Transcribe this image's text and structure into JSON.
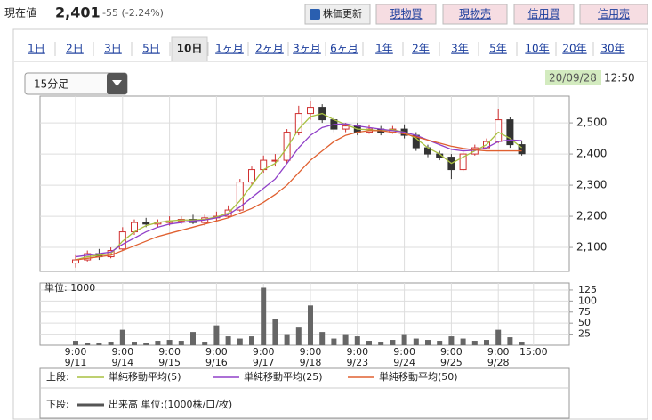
{
  "header": {
    "price_label": "現在値",
    "price": "2,401",
    "change": "-55 (-2.24%)",
    "buttons": [
      "株価更新",
      "現物買",
      "現物売",
      "信用買",
      "信用売"
    ]
  },
  "periods": [
    {
      "label": "1日",
      "selected": false
    },
    {
      "label": "2日",
      "selected": false
    },
    {
      "label": "3日",
      "selected": false
    },
    {
      "label": "5日",
      "selected": false
    },
    {
      "label": "10日",
      "selected": true
    },
    {
      "label": "1ヶ月",
      "selected": false
    },
    {
      "label": "2ヶ月",
      "selected": false
    },
    {
      "label": "3ヶ月",
      "selected": false
    },
    {
      "label": "6ヶ月",
      "selected": false
    },
    {
      "label": "1年",
      "selected": false
    },
    {
      "label": "2年",
      "selected": false
    },
    {
      "label": "3年",
      "selected": false
    },
    {
      "label": "5年",
      "selected": false
    },
    {
      "label": "10年",
      "selected": false
    },
    {
      "label": "20年",
      "selected": false
    },
    {
      "label": "30年",
      "selected": false
    }
  ],
  "interval_select": "15分足",
  "timestamp": {
    "date": "20/09/28",
    "time": "12:50"
  },
  "legend": {
    "upper_label": "上段:",
    "lower_label": "下段:",
    "volume_label": "出来高 単位:(1000株/口/枚)"
  },
  "chart_data": [
    {
      "type": "candlestick",
      "up_color": "#d03030",
      "down_color": "#333333",
      "ylim": [
        2023,
        2586
      ],
      "yticks": [
        {
          "value": 2100,
          "label": "2,100"
        },
        {
          "value": 2200,
          "label": "2,200"
        },
        {
          "value": 2300,
          "label": "2,300"
        },
        {
          "value": 2400,
          "label": "2,400"
        },
        {
          "value": 2500,
          "label": "2,500"
        }
      ],
      "grid": true,
      "open": [
        2050,
        2060,
        2080,
        2070,
        2095,
        2150,
        2180,
        2175,
        2180,
        2185,
        2190,
        2180,
        2195,
        2200,
        2220,
        2310,
        2350,
        2380,
        2380,
        2470,
        2530,
        2550,
        2510,
        2480,
        2490,
        2470,
        2480,
        2470,
        2480,
        2460,
        2420,
        2400,
        2390,
        2350,
        2400,
        2420,
        2440,
        2510,
        2430,
        null
      ],
      "high": [
        2075,
        2090,
        2095,
        2100,
        2165,
        2190,
        2195,
        2190,
        2200,
        2200,
        2205,
        2205,
        2215,
        2235,
        2320,
        2360,
        2395,
        2400,
        2480,
        2555,
        2570,
        2560,
        2520,
        2500,
        2500,
        2495,
        2490,
        2490,
        2495,
        2470,
        2430,
        2410,
        2400,
        2410,
        2430,
        2450,
        2545,
        2520,
        2440,
        null
      ],
      "low": [
        2035,
        2055,
        2060,
        2065,
        2090,
        2140,
        2165,
        2165,
        2170,
        2175,
        2175,
        2170,
        2185,
        2195,
        2215,
        2300,
        2340,
        2360,
        2370,
        2460,
        2510,
        2500,
        2470,
        2470,
        2460,
        2465,
        2460,
        2465,
        2450,
        2410,
        2390,
        2380,
        2320,
        2345,
        2395,
        2415,
        2435,
        2420,
        2395,
        null
      ],
      "close": [
        2060,
        2080,
        2070,
        2090,
        2150,
        2180,
        2175,
        2180,
        2185,
        2190,
        2180,
        2195,
        2200,
        2220,
        2310,
        2350,
        2380,
        2380,
        2470,
        2530,
        2550,
        2510,
        2480,
        2490,
        2470,
        2480,
        2470,
        2480,
        2460,
        2420,
        2400,
        2390,
        2350,
        2400,
        2420,
        2440,
        2510,
        2430,
        2401,
        null
      ],
      "series": [
        {
          "name": "単純移動平均(5)",
          "color": "#a8c040",
          "values": [
            2060,
            2070,
            2075,
            2080,
            2120,
            2150,
            2170,
            2180,
            2185,
            2188,
            2188,
            2190,
            2198,
            2210,
            2250,
            2300,
            2350,
            2370,
            2420,
            2480,
            2520,
            2530,
            2510,
            2495,
            2480,
            2478,
            2475,
            2478,
            2470,
            2450,
            2420,
            2400,
            2370,
            2390,
            2410,
            2430,
            2470,
            2450,
            2420,
            null
          ]
        },
        {
          "name": "単純移動平均(25)",
          "color": "#9040c8",
          "values": [
            2070,
            2075,
            2080,
            2085,
            2110,
            2130,
            2150,
            2165,
            2175,
            2180,
            2185,
            2188,
            2195,
            2205,
            2230,
            2260,
            2290,
            2320,
            2370,
            2420,
            2460,
            2485,
            2495,
            2497,
            2490,
            2485,
            2480,
            2475,
            2470,
            2460,
            2445,
            2430,
            2415,
            2410,
            2412,
            2420,
            2440,
            2445,
            2443,
            null
          ]
        },
        {
          "name": "単純移動平均(50)",
          "color": "#e06030",
          "values": [
            2060,
            2065,
            2070,
            2075,
            2090,
            2105,
            2120,
            2135,
            2145,
            2155,
            2165,
            2175,
            2185,
            2195,
            2210,
            2225,
            2245,
            2270,
            2300,
            2340,
            2380,
            2410,
            2440,
            2460,
            2470,
            2475,
            2475,
            2470,
            2465,
            2455,
            2445,
            2435,
            2425,
            2418,
            2413,
            2410,
            2410,
            2410,
            2410,
            null
          ]
        }
      ]
    },
    {
      "type": "bar",
      "unit_label": "単位: 1000",
      "color": "#666666",
      "ylim": [
        0,
        141
      ],
      "yticks": [
        25,
        50,
        75,
        100,
        125
      ],
      "grid": true,
      "categories": [
        "9/11",
        null,
        null,
        null,
        "9/14",
        null,
        null,
        null,
        "9/15",
        null,
        null,
        null,
        "9/16",
        null,
        null,
        null,
        "9/17",
        null,
        null,
        null,
        "9/18",
        null,
        null,
        null,
        "9/23",
        null,
        null,
        null,
        "9/24",
        null,
        null,
        null,
        "9/25",
        null,
        null,
        null,
        "9/28",
        null,
        null,
        null
      ],
      "times": [
        "9:00",
        null,
        null,
        null,
        "9:00",
        null,
        null,
        null,
        "9:00",
        null,
        null,
        null,
        "9:00",
        null,
        null,
        null,
        "9:00",
        null,
        null,
        null,
        "9:00",
        null,
        null,
        null,
        "9:00",
        null,
        null,
        null,
        "9:00",
        null,
        null,
        null,
        "9:00",
        null,
        null,
        null,
        "9:00",
        null,
        null,
        "15:00"
      ],
      "values": [
        10,
        5,
        4,
        8,
        35,
        8,
        6,
        10,
        12,
        10,
        30,
        8,
        45,
        20,
        15,
        20,
        130,
        60,
        25,
        40,
        90,
        30,
        15,
        25,
        20,
        10,
        8,
        12,
        25,
        15,
        12,
        10,
        20,
        15,
        10,
        12,
        35,
        18,
        8,
        null
      ]
    }
  ]
}
